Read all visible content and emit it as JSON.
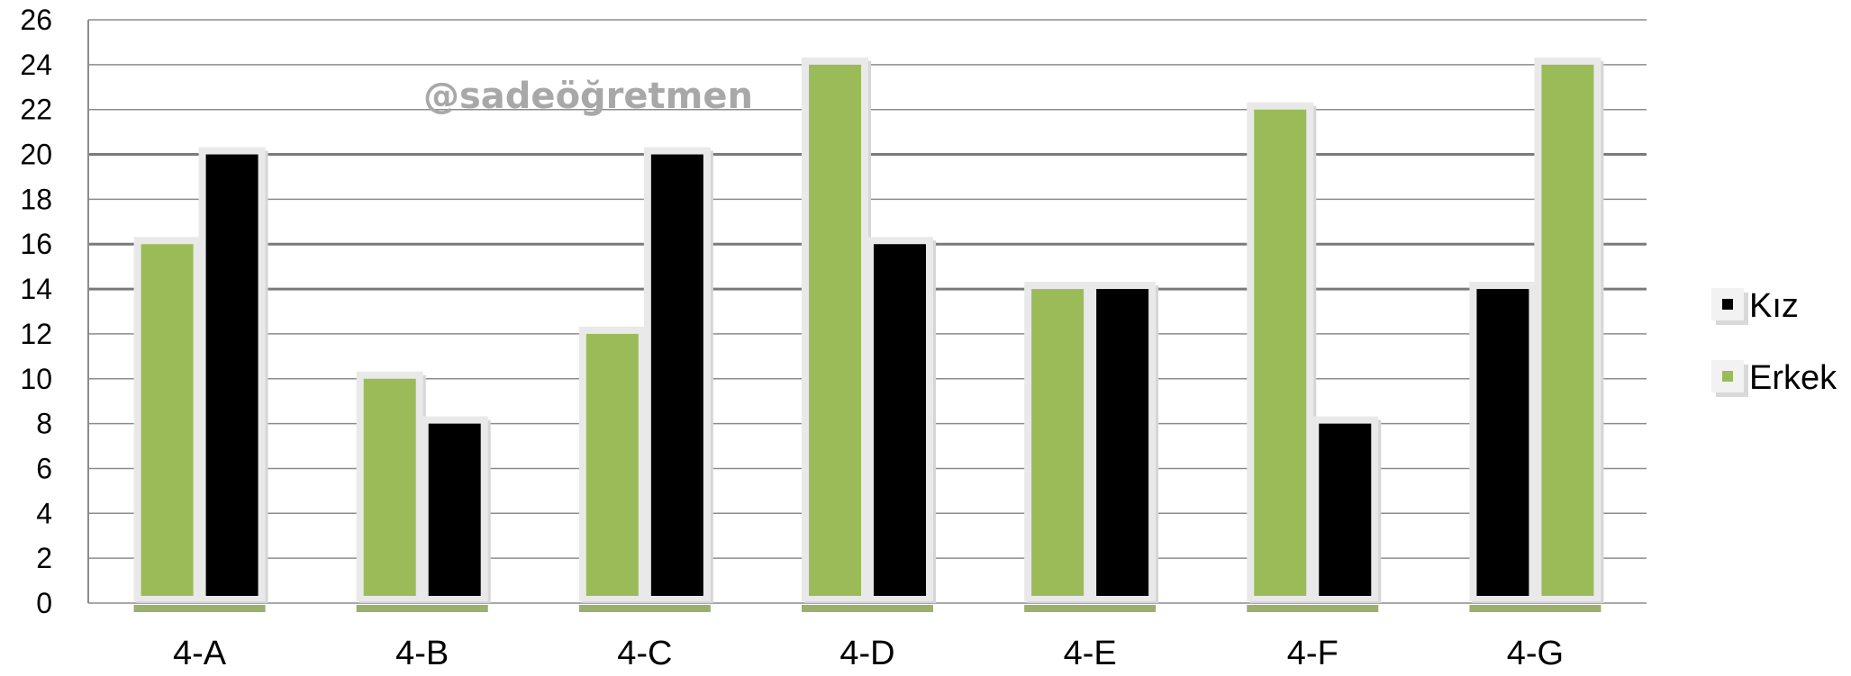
{
  "watermark": "@sadeöğretmen",
  "colors": {
    "erkek": "#9bbb59",
    "kiz": "#000000",
    "grid": "#8c8c8c",
    "grid_major": "#7a7a7a",
    "bar_frame": "#e9e9e9"
  },
  "chart_data": {
    "type": "bar",
    "title": "",
    "xlabel": "",
    "ylabel": "",
    "ylim": [
      0,
      26
    ],
    "y_step": 2,
    "grid": true,
    "legend_position": "right",
    "categories": [
      "4-A",
      "4-B",
      "4-C",
      "4-D",
      "4-E",
      "4-F",
      "4-G"
    ],
    "series": [
      {
        "name": "Erkek",
        "color": "#9bbb59",
        "values": [
          16,
          10,
          12,
          24,
          14,
          22,
          24
        ]
      },
      {
        "name": "Kız",
        "color": "#000000",
        "values": [
          20,
          8,
          20,
          16,
          14,
          8,
          14
        ]
      }
    ],
    "draw_order": [
      [
        "Erkek",
        "Kız"
      ],
      [
        "Erkek",
        "Kız"
      ],
      [
        "Erkek",
        "Kız"
      ],
      [
        "Erkek",
        "Kız"
      ],
      [
        "Erkek",
        "Kız"
      ],
      [
        "Erkek",
        "Kız"
      ],
      [
        "Kız",
        "Erkek"
      ]
    ],
    "legend": [
      {
        "label": "Kız",
        "color": "#000000"
      },
      {
        "label": "Erkek",
        "color": "#9bbb59"
      }
    ]
  }
}
